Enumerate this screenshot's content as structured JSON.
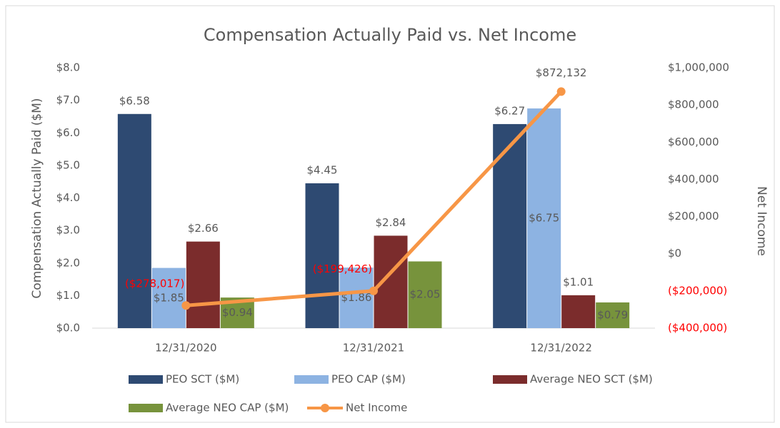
{
  "chart_data": {
    "type": "bar_line",
    "title": "Compensation Actually Paid vs. Net Income",
    "ylabel": "Compensation Actually Paid ($M)",
    "y2label": "Net Income",
    "categories": [
      "12/31/2020",
      "12/31/2021",
      "12/31/2022"
    ],
    "series": [
      {
        "name": "PEO SCT ($M)",
        "color": "#2e4a72",
        "type": "bar",
        "values": [
          6.58,
          4.45,
          6.27
        ],
        "value_labels": [
          "$6.58",
          "$4.45",
          "$6.27"
        ],
        "label_position": "above"
      },
      {
        "name": "PEO CAP ($M)",
        "color": "#8db3e2",
        "type": "bar",
        "values": [
          1.85,
          1.86,
          6.75
        ],
        "value_labels": [
          "$1.85",
          "$1.86",
          "$6.75"
        ],
        "label_position": "inside"
      },
      {
        "name": "Average NEO SCT ($M)",
        "color": "#7b2c2c",
        "type": "bar",
        "values": [
          2.66,
          2.84,
          1.01
        ],
        "value_labels": [
          "$2.66",
          "$2.84",
          "$1.01"
        ],
        "label_position": "above"
      },
      {
        "name": "Average NEO CAP ($M)",
        "color": "#77933c",
        "type": "bar",
        "values": [
          0.94,
          2.05,
          0.79
        ],
        "value_labels": [
          "$0.94",
          "$2.05",
          "$0.79"
        ],
        "label_position": "inside"
      },
      {
        "name": "Net Income",
        "color": "#f79646",
        "type": "line",
        "axis": "y2",
        "values": [
          -278017,
          -199426,
          872132
        ],
        "value_labels": [
          "($278,017)",
          "($199,426)",
          "$872,132"
        ],
        "label_position": "above"
      }
    ],
    "ylim": [
      0,
      8
    ],
    "yticks": [
      {
        "value": 0,
        "label": "$0.0"
      },
      {
        "value": 1,
        "label": "$1.0"
      },
      {
        "value": 2,
        "label": "$2.0"
      },
      {
        "value": 3,
        "label": "$3.0"
      },
      {
        "value": 4,
        "label": "$4.0"
      },
      {
        "value": 5,
        "label": "$5.0"
      },
      {
        "value": 6,
        "label": "$6.0"
      },
      {
        "value": 7,
        "label": "$7.0"
      },
      {
        "value": 8,
        "label": "$8.0"
      }
    ],
    "y2lim": [
      -400000,
      1000000
    ],
    "y2ticks": [
      {
        "value": -400000,
        "label": "($400,000)"
      },
      {
        "value": -200000,
        "label": "($200,000)"
      },
      {
        "value": 0,
        "label": "$0"
      },
      {
        "value": 200000,
        "label": "$200,000"
      },
      {
        "value": 400000,
        "label": "$400,000"
      },
      {
        "value": 600000,
        "label": "$600,000"
      },
      {
        "value": 800000,
        "label": "$800,000"
      },
      {
        "value": 1000000,
        "label": "$1,000,000"
      }
    ],
    "negative_color": "#ff0000",
    "grid": false,
    "legend": "bottom"
  }
}
